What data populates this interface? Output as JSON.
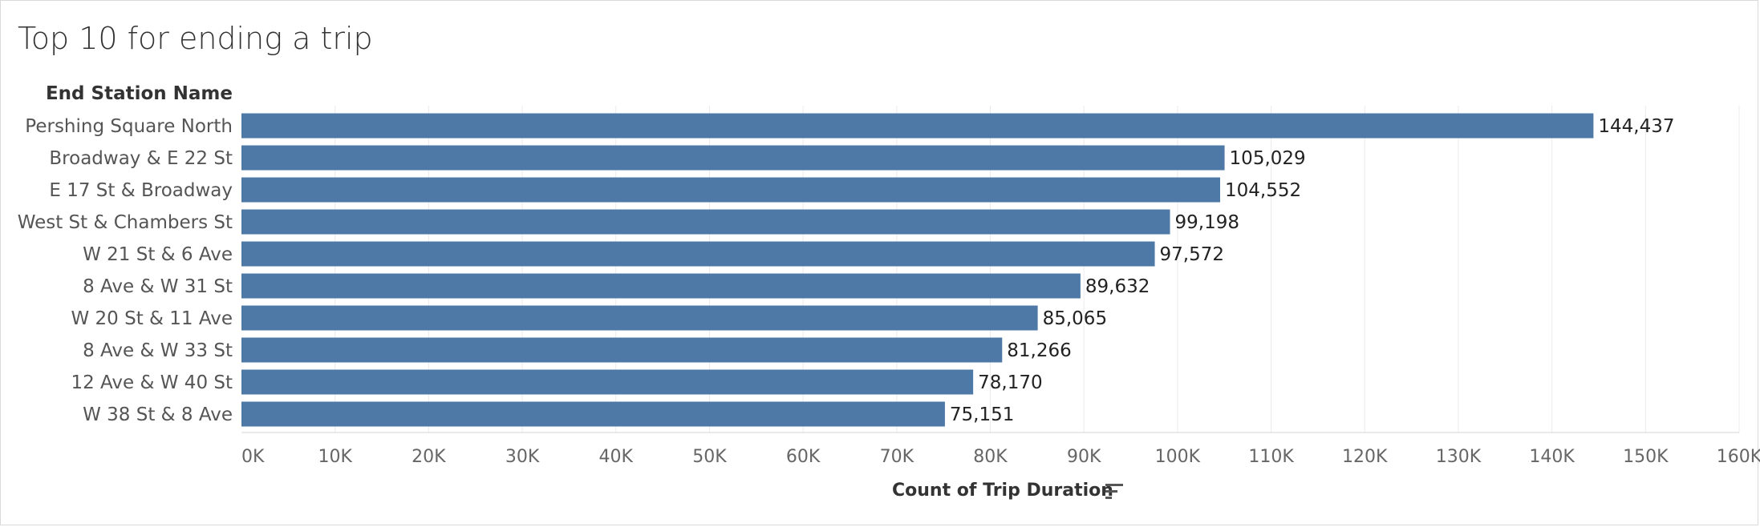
{
  "title": "Top 10 for ending a trip",
  "row_header": "End Station Name",
  "x_axis_title": "Count of Trip Duration",
  "sort_icon": "sort-descending-icon",
  "colors": {
    "bar": "#4e79a7",
    "grid": "#ebebeb",
    "text": "#333333",
    "axis_text": "#666666"
  },
  "chart_data": {
    "type": "bar",
    "orientation": "horizontal",
    "title": "Top 10 for ending a trip",
    "ylabel": "End Station Name",
    "xlabel": "Count of Trip Duration",
    "categories": [
      "Pershing Square North",
      "Broadway & E 22 St",
      "E 17 St & Broadway",
      "West St & Chambers St",
      "W 21 St & 6 Ave",
      "8 Ave & W 31 St",
      "W 20 St & 11 Ave",
      "8 Ave & W 33 St",
      "12 Ave & W 40 St",
      "W 38 St & 8 Ave"
    ],
    "values": [
      144437,
      105029,
      104552,
      99198,
      97572,
      89632,
      85065,
      81266,
      78170,
      75151
    ],
    "value_labels": [
      "144,437",
      "105,029",
      "104,552",
      "99,198",
      "97,572",
      "89,632",
      "85,065",
      "81,266",
      "78,170",
      "75,151"
    ],
    "xlim": [
      0,
      160000
    ],
    "xticks": [
      0,
      10000,
      20000,
      30000,
      40000,
      50000,
      60000,
      70000,
      80000,
      90000,
      100000,
      110000,
      120000,
      130000,
      140000,
      150000,
      160000
    ],
    "xtick_labels": [
      "0K",
      "10K",
      "20K",
      "30K",
      "40K",
      "50K",
      "60K",
      "70K",
      "80K",
      "90K",
      "100K",
      "110K",
      "120K",
      "130K",
      "140K",
      "150K",
      "160K"
    ],
    "grid": "vertical",
    "legend": "none"
  }
}
